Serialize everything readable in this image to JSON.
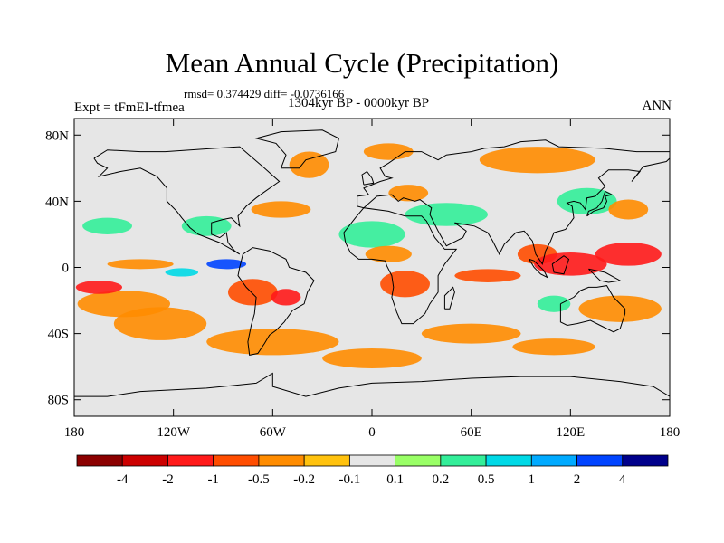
{
  "title": "Mean Annual Cycle (Precipitation)",
  "stats_line": "rmsd= 0.374429 diff= -0.0736166",
  "period_line": "1304kyr BP - 0000kyr BP",
  "experiment_label": "Expt = tFmEI-tfmea",
  "season_label": "ANN",
  "chart_data": {
    "type": "heatmap",
    "title": "Mean Annual Cycle (Precipitation)",
    "subtitle": "1304kyr BP - 0000kyr BP",
    "variable": "precipitation difference",
    "x_ticks": [
      {
        "value": -180,
        "label": "180"
      },
      {
        "value": -120,
        "label": "120W"
      },
      {
        "value": -60,
        "label": "60W"
      },
      {
        "value": 0,
        "label": "0"
      },
      {
        "value": 60,
        "label": "60E"
      },
      {
        "value": 120,
        "label": "120E"
      },
      {
        "value": 180,
        "label": "180"
      }
    ],
    "y_ticks": [
      {
        "value": 80,
        "label": "80N"
      },
      {
        "value": 40,
        "label": "40N"
      },
      {
        "value": 0,
        "label": "0"
      },
      {
        "value": -40,
        "label": "40S"
      },
      {
        "value": -80,
        "label": "80S"
      }
    ],
    "xlim": [
      -180,
      180
    ],
    "ylim": [
      -90,
      90
    ],
    "colorbar": {
      "colors": [
        "#8b0000",
        "#cc0000",
        "#ff1a1a",
        "#ff4d00",
        "#ff8c00",
        "#ffc20e",
        "#e6e6e6",
        "#99ff66",
        "#33ee99",
        "#00d9e6",
        "#00aaff",
        "#0044ff",
        "#00008b"
      ],
      "labels": [
        "-4",
        "-2",
        "-1",
        "-0.5",
        "-0.2",
        "-0.1",
        "0.1",
        "0.2",
        "0.5",
        "1",
        "2",
        "4"
      ]
    },
    "anomaly_regions": [
      {
        "lon": -150,
        "lat": -22,
        "rlon": 28,
        "rlat": 8,
        "value": -0.3
      },
      {
        "lon": -165,
        "lat": -12,
        "rlon": 14,
        "rlat": 4,
        "value": -1.2
      },
      {
        "lon": -140,
        "lat": 2,
        "rlon": 20,
        "rlat": 3,
        "value": -0.2
      },
      {
        "lon": -115,
        "lat": -3,
        "rlon": 10,
        "rlat": 2.5,
        "value": 0.7
      },
      {
        "lon": -88,
        "lat": 2,
        "rlon": 12,
        "rlat": 3,
        "value": 2.5
      },
      {
        "lon": -72,
        "lat": -15,
        "rlon": 15,
        "rlat": 8,
        "value": -0.6
      },
      {
        "lon": -52,
        "lat": -18,
        "rlon": 9,
        "rlat": 5,
        "value": -1.2
      },
      {
        "lon": -128,
        "lat": -34,
        "rlon": 28,
        "rlat": 10,
        "value": -0.4
      },
      {
        "lon": -60,
        "lat": -45,
        "rlon": 40,
        "rlat": 8,
        "value": -0.2
      },
      {
        "lon": -100,
        "lat": 25,
        "rlon": 15,
        "rlat": 6,
        "value": 0.4
      },
      {
        "lon": -55,
        "lat": 35,
        "rlon": 18,
        "rlat": 5,
        "value": -0.3
      },
      {
        "lon": -38,
        "lat": 62,
        "rlon": 12,
        "rlat": 8,
        "value": -0.2
      },
      {
        "lon": 0,
        "lat": 20,
        "rlon": 20,
        "rlat": 8,
        "value": 0.35
      },
      {
        "lon": 10,
        "lat": 8,
        "rlon": 14,
        "rlat": 5,
        "value": -0.3
      },
      {
        "lon": 20,
        "lat": -10,
        "rlon": 15,
        "rlat": 8,
        "value": -0.6
      },
      {
        "lon": 45,
        "lat": 32,
        "rlon": 25,
        "rlat": 7,
        "value": 0.3
      },
      {
        "lon": 22,
        "lat": 45,
        "rlon": 12,
        "rlat": 5,
        "value": -0.3
      },
      {
        "lon": 70,
        "lat": -5,
        "rlon": 20,
        "rlat": 4,
        "value": -0.6
      },
      {
        "lon": 100,
        "lat": 8,
        "rlon": 12,
        "rlat": 6,
        "value": -0.6
      },
      {
        "lon": 120,
        "lat": 2,
        "rlon": 22,
        "rlat": 7,
        "value": -1.2
      },
      {
        "lon": 155,
        "lat": 8,
        "rlon": 20,
        "rlat": 7,
        "value": -1.5
      },
      {
        "lon": 150,
        "lat": -25,
        "rlon": 25,
        "rlat": 8,
        "value": -0.3
      },
      {
        "lon": 110,
        "lat": -22,
        "rlon": 10,
        "rlat": 5,
        "value": 0.4
      },
      {
        "lon": 130,
        "lat": 40,
        "rlon": 18,
        "rlat": 8,
        "value": 0.3
      },
      {
        "lon": 155,
        "lat": 35,
        "rlon": 12,
        "rlat": 6,
        "value": -0.3
      },
      {
        "lon": 60,
        "lat": -40,
        "rlon": 30,
        "rlat": 6,
        "value": -0.2
      },
      {
        "lon": 110,
        "lat": -48,
        "rlon": 25,
        "rlat": 5,
        "value": -0.2
      },
      {
        "lon": 0,
        "lat": -55,
        "rlon": 30,
        "rlat": 6,
        "value": -0.2
      },
      {
        "lon": 100,
        "lat": 65,
        "rlon": 35,
        "rlat": 8,
        "value": -0.2
      },
      {
        "lon": 10,
        "lat": 70,
        "rlon": 15,
        "rlat": 5,
        "value": -0.2
      },
      {
        "lon": -160,
        "lat": 25,
        "rlon": 15,
        "rlat": 5,
        "value": 0.3
      }
    ]
  }
}
